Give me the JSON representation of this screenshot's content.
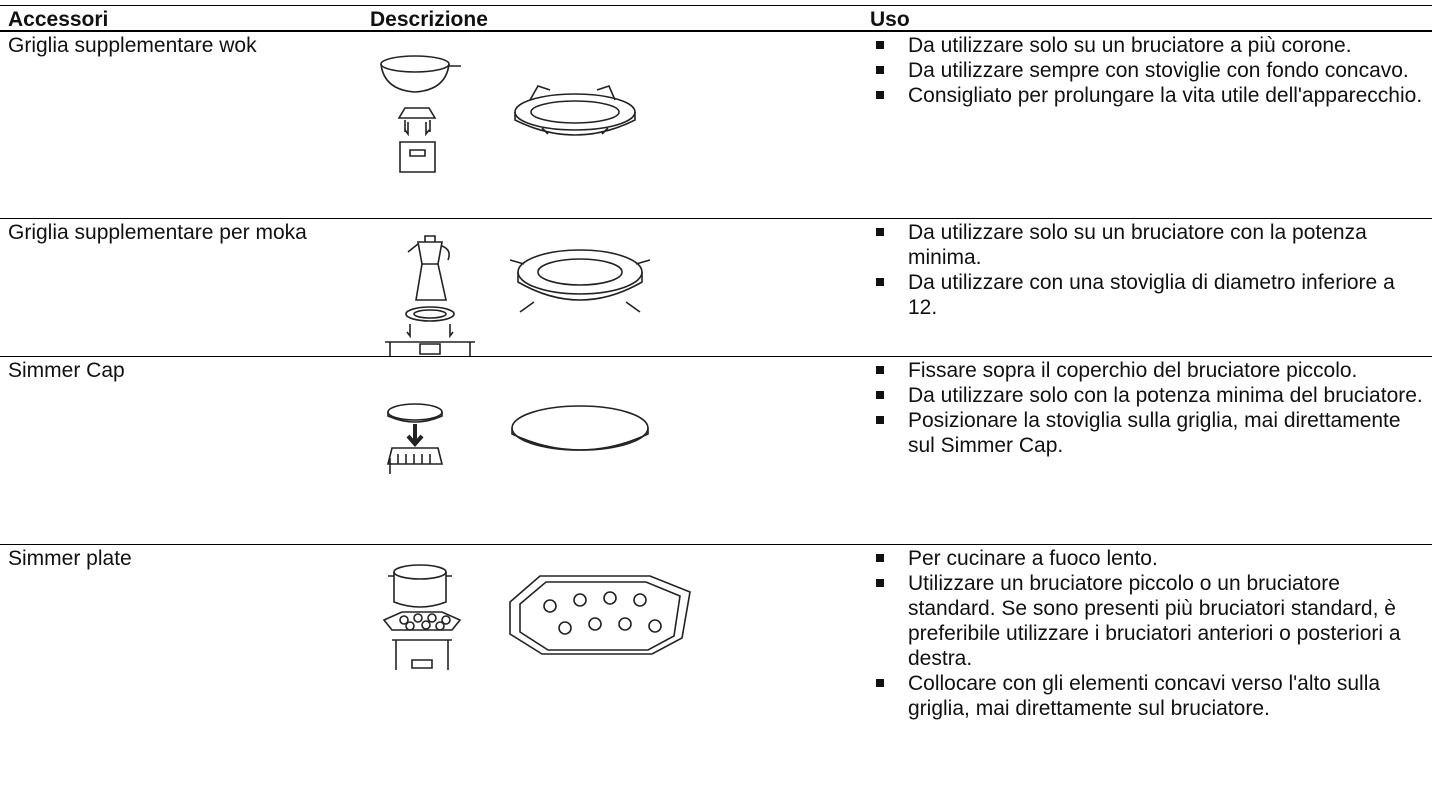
{
  "table": {
    "headers": [
      "Accessori",
      "Descrizione",
      "Uso"
    ],
    "rows": [
      {
        "name": "Griglia supplementare wok",
        "uses": [
          "Da utilizzare solo su un bruciatore a più corone.",
          "Da utilizzare sempre con stoviglie con fondo concavo.",
          "Consigliato per prolungare la vita utile dell'apparecchio."
        ]
      },
      {
        "name": "Griglia supplementare per moka",
        "uses": [
          "Da utilizzare solo su un bruciatore con la potenza minima.",
          "Da utilizzare con una stoviglia di diametro inferiore a 12."
        ]
      },
      {
        "name": "Simmer Cap",
        "uses": [
          "Fissare sopra il coperchio del bruciatore piccolo.",
          "Da utilizzare solo con la potenza minima del bruciatore.",
          "Posizionare la stoviglia sulla griglia, mai direttamente sul Simmer Cap."
        ]
      },
      {
        "name": "Simmer plate",
        "uses": [
          "Per cucinare a fuoco lento.",
          "Utilizzare un bruciatore piccolo o un bru­ciatore standard. Se sono presenti più bruciatori standard, è preferibile utilizzare i bruciatori anteriori o posteriori a destra.",
          "Collocare con gli elementi concavi verso l'alto sulla griglia, mai direttamente sul bruciatore."
        ]
      }
    ]
  }
}
